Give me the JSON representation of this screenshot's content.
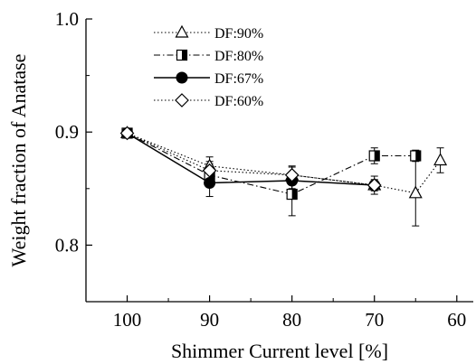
{
  "chart_data": {
    "type": "line",
    "title": "",
    "xlabel": "Shimmer Current level [%]",
    "ylabel": "Weight fraction of Anatase",
    "xlim": [
      105,
      58
    ],
    "ylim": [
      0.75,
      1.0
    ],
    "x_reversed": true,
    "x_ticks": [
      "100",
      "90",
      "80",
      "70",
      "60"
    ],
    "y_ticks": [
      "0.8",
      "0.9",
      "1.0"
    ],
    "legend_position": "top-left",
    "grid": false,
    "series": [
      {
        "name": "DF:90%",
        "marker": "open-triangle",
        "line_style": "dotted",
        "points": [
          {
            "x": 100,
            "y": 0.899,
            "err": 0.002
          },
          {
            "x": 90,
            "y": 0.87,
            "err": 0.008
          },
          {
            "x": 80,
            "y": 0.862,
            "err": 0.008
          },
          {
            "x": 70,
            "y": 0.853,
            "err": 0.004
          },
          {
            "x": 65,
            "y": 0.846,
            "err": 0.029
          },
          {
            "x": 62,
            "y": 0.875,
            "err": 0.011
          }
        ]
      },
      {
        "name": "DF:80%",
        "marker": "half-filled-square",
        "line_style": "dash-dot",
        "points": [
          {
            "x": 100,
            "y": 0.899,
            "err": 0.002
          },
          {
            "x": 90,
            "y": 0.862,
            "err": 0.01
          },
          {
            "x": 80,
            "y": 0.845,
            "err": 0.019
          },
          {
            "x": 70,
            "y": 0.879,
            "err": 0.007
          },
          {
            "x": 65,
            "y": 0.879,
            "err": 0.005
          }
        ]
      },
      {
        "name": "DF:67%",
        "marker": "filled-circle",
        "line_style": "solid",
        "points": [
          {
            "x": 100,
            "y": 0.899,
            "err": 0.002
          },
          {
            "x": 90,
            "y": 0.855,
            "err": 0.012
          },
          {
            "x": 80,
            "y": 0.857,
            "err": 0.007
          },
          {
            "x": 70,
            "y": 0.853,
            "err": 0.008
          }
        ]
      },
      {
        "name": "DF:60%",
        "marker": "open-diamond",
        "line_style": "dotted",
        "points": [
          {
            "x": 100,
            "y": 0.899,
            "err": 0.002
          },
          {
            "x": 90,
            "y": 0.866,
            "err": 0.008
          },
          {
            "x": 80,
            "y": 0.862,
            "err": 0.007
          },
          {
            "x": 70,
            "y": 0.853,
            "err": 0.005
          }
        ]
      }
    ]
  }
}
